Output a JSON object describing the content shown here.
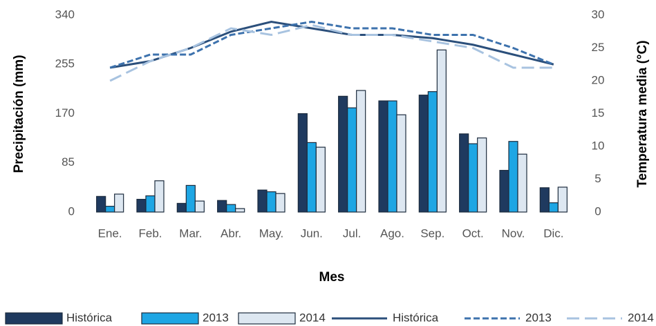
{
  "chart_data": {
    "type": "bar",
    "x_label": "Mes",
    "y_label": "Precipitación (mm)",
    "y2_label": "Temperatura  media  (°C)",
    "categories": [
      "Ene.",
      "Feb.",
      "Mar.",
      "Abr.",
      "May.",
      "Jun.",
      "Jul.",
      "Ago.",
      "Sep.",
      "Oct.",
      "Nov.",
      "Dic."
    ],
    "ylim": [
      0,
      340
    ],
    "yticks": [
      0,
      85,
      170,
      255,
      340
    ],
    "y2lim": [
      0,
      30
    ],
    "y2ticks": [
      0,
      5,
      10,
      15,
      20,
      25,
      30
    ],
    "grid": false,
    "legend": "bottom",
    "series": [
      {
        "name": "Histórica",
        "color": "#1f3a5f",
        "values": [
          27,
          22,
          15,
          20,
          38,
          170,
          200,
          192,
          202,
          135,
          72,
          42
        ]
      },
      {
        "name": "2013",
        "color": "#1ea6e4",
        "values": [
          10,
          28,
          46,
          13,
          35,
          120,
          180,
          192,
          208,
          118,
          122,
          16
        ]
      },
      {
        "name": "2014",
        "color": "#dde7f1",
        "values": [
          31,
          54,
          19,
          6,
          32,
          112,
          210,
          168,
          280,
          128,
          100,
          43
        ]
      },
      {
        "name": "Histórica",
        "color": "#2b4f7b",
        "axis": "y2",
        "line_style": "solid",
        "values": [
          22,
          23,
          25,
          27.5,
          29,
          28,
          27,
          27,
          26.5,
          25.5,
          24,
          22.5
        ]
      },
      {
        "name": "2013",
        "color": "#3d72ad",
        "axis": "y2",
        "line_style": "dashed",
        "values": [
          22,
          24,
          24,
          27,
          28,
          29,
          28,
          28,
          27,
          27,
          25,
          22.5
        ]
      },
      {
        "name": "2014",
        "color": "#a8c3e0",
        "axis": "y2",
        "line_style": "longdash",
        "values": [
          20,
          23,
          25,
          28,
          27,
          28.5,
          27,
          27,
          26,
          25,
          22,
          22
        ]
      }
    ]
  }
}
